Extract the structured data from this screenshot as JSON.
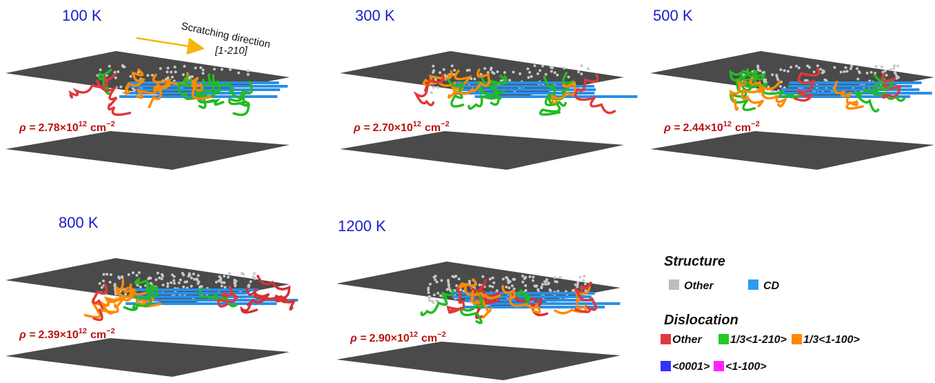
{
  "panels": [
    {
      "label": "100 K",
      "density": "2.78"
    },
    {
      "label": "300 K",
      "density": "2.70"
    },
    {
      "label": "500 K",
      "density": "2.44"
    },
    {
      "label": "800 K",
      "density": "2.39"
    },
    {
      "label": "1200 K",
      "density": "2.90"
    }
  ],
  "density_format": {
    "prefix": "ρ =",
    "times": "×",
    "base": "10",
    "exponent": "12",
    "unit": "cm",
    "unit_exponent": "−2"
  },
  "annotation": {
    "text": "Scratching direction",
    "direction": "[1-210]"
  },
  "legend": {
    "structure_title": "Structure",
    "structure": [
      {
        "name": "Other",
        "color": "#bdbdbd"
      },
      {
        "name": "CD",
        "color": "#2a9df0"
      }
    ],
    "dislocation_title": "Dislocation",
    "dislocation": [
      {
        "name": "Other",
        "color": "#e0393b"
      },
      {
        "name": "1/3<1-210>",
        "color": "#22cc22"
      },
      {
        "name": "1/3<1-100>",
        "color": "#ff8a00"
      },
      {
        "name": "<0001>",
        "color": "#3333ff"
      },
      {
        "name": "<1-100>",
        "color": "#ff22ff"
      }
    ]
  }
}
